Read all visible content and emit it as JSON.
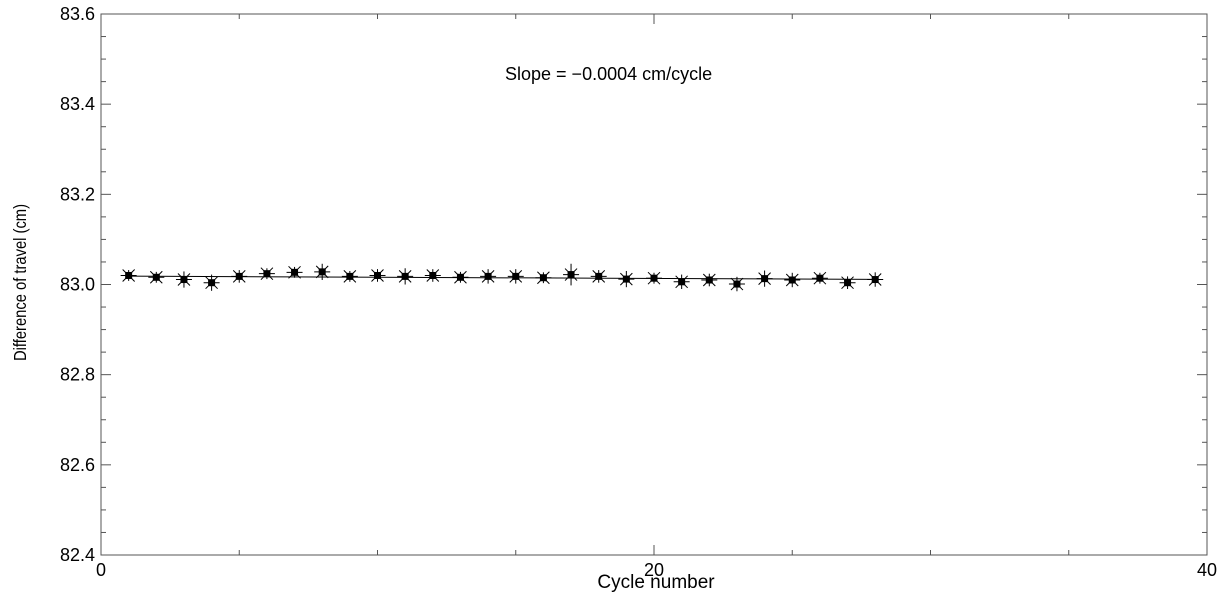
{
  "chart_data": {
    "type": "scatter",
    "title": "",
    "xlabel": "Cycle number",
    "ylabel": "Difference of travel  (cm)",
    "xlim": [
      0,
      40
    ],
    "ylim": [
      82.4,
      83.6
    ],
    "x_ticks": [
      0,
      20,
      40
    ],
    "x_tick_labels": [
      "0",
      "20",
      "40"
    ],
    "x_minor_step": 5,
    "y_ticks": [
      82.4,
      82.6,
      82.8,
      83.0,
      83.2,
      83.4,
      83.6
    ],
    "y_tick_labels": [
      "82.4",
      "82.6",
      "82.8",
      "83.0",
      "83.2",
      "83.4",
      "83.6"
    ],
    "y_minor_step": 0.05,
    "grid": false,
    "annotation": "Slope = −0.0004 cm/cycle",
    "series": [
      {
        "x": [
          1,
          2,
          3,
          4,
          5,
          6,
          7,
          8,
          9,
          10,
          11,
          12,
          13,
          14,
          15,
          16,
          17,
          18,
          19,
          20,
          21,
          22,
          23,
          24,
          25,
          26,
          27,
          28
        ],
        "y": [
          83.02,
          83.016,
          83.011,
          83.004,
          83.018,
          83.024,
          83.027,
          83.028,
          83.018,
          83.02,
          83.018,
          83.02,
          83.016,
          83.018,
          83.018,
          83.015,
          83.022,
          83.018,
          83.012,
          83.014,
          83.006,
          83.01,
          83.001,
          83.013,
          83.01,
          83.014,
          83.004,
          83.011
        ],
        "err": [
          0.012,
          0.012,
          0.018,
          0.018,
          0.014,
          0.012,
          0.012,
          0.018,
          0.012,
          0.014,
          0.018,
          0.014,
          0.012,
          0.016,
          0.016,
          0.012,
          0.024,
          0.014,
          0.018,
          0.012,
          0.016,
          0.014,
          0.016,
          0.018,
          0.016,
          0.012,
          0.014,
          0.016
        ]
      }
    ],
    "fit_line": {
      "x": [
        1,
        28
      ],
      "y": [
        83.0185,
        83.0113
      ]
    }
  }
}
